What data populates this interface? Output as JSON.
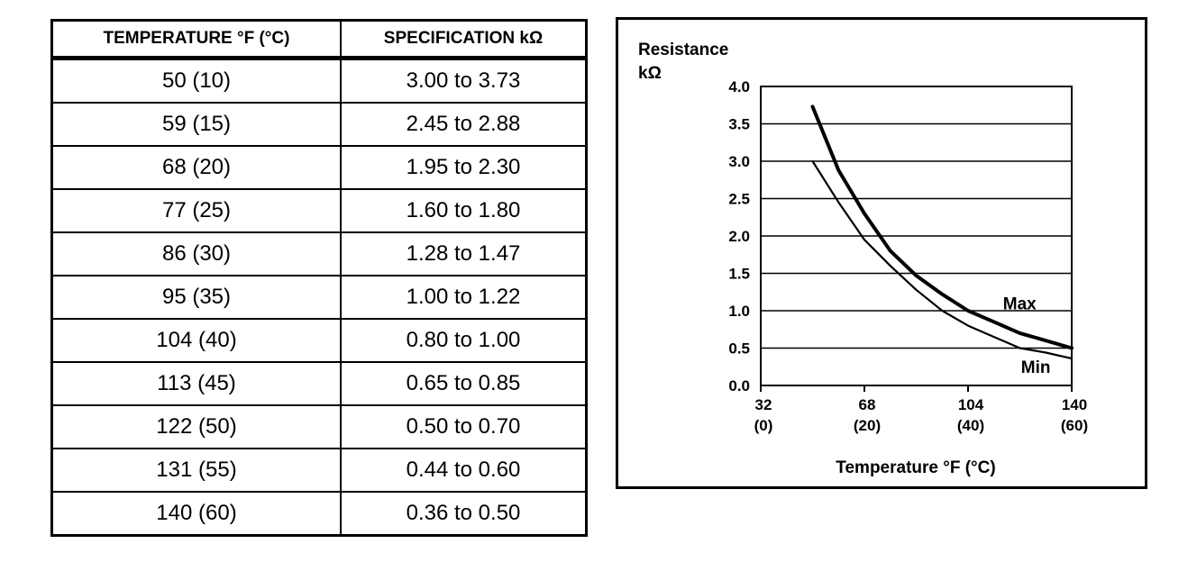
{
  "table": {
    "headers": [
      "TEMPERATURE °F (°C)",
      "SPECIFICATION kΩ"
    ],
    "rows": [
      [
        "50 (10)",
        "3.00 to 3.73"
      ],
      [
        "59 (15)",
        "2.45 to 2.88"
      ],
      [
        "68 (20)",
        "1.95 to 2.30"
      ],
      [
        "77 (25)",
        "1.60 to 1.80"
      ],
      [
        "86 (30)",
        "1.28 to 1.47"
      ],
      [
        "95 (35)",
        "1.00 to 1.22"
      ],
      [
        "104 (40)",
        "0.80 to 1.00"
      ],
      [
        "113 (45)",
        "0.65 to 0.85"
      ],
      [
        "122 (50)",
        "0.50 to 0.70"
      ],
      [
        "131 (55)",
        "0.44 to 0.60"
      ],
      [
        "140 (60)",
        "0.36 to 0.50"
      ]
    ]
  },
  "chart_data": {
    "type": "line",
    "ylabel_line1": "Resistance",
    "ylabel_line2": "kΩ",
    "xlabel": "Temperature °F (°C)",
    "xlim": [
      32,
      140
    ],
    "ylim": [
      0,
      4.0
    ],
    "grid": "horizontal",
    "y_ticks": [
      "0.0",
      "0.5",
      "1.0",
      "1.5",
      "2.0",
      "2.5",
      "3.0",
      "3.5",
      "4.0"
    ],
    "y_tick_values": [
      0,
      0.5,
      1.0,
      1.5,
      2.0,
      2.5,
      3.0,
      3.5,
      4.0
    ],
    "x_ticks": [
      {
        "value": 32,
        "label_f": "32",
        "label_c": "(0)"
      },
      {
        "value": 68,
        "label_f": "68",
        "label_c": "(20)"
      },
      {
        "value": 104,
        "label_f": "104",
        "label_c": "(40)"
      },
      {
        "value": 140,
        "label_f": "140",
        "label_c": "(60)"
      }
    ],
    "series": [
      {
        "name": "Max",
        "x": [
          50,
          59,
          68,
          77,
          86,
          95,
          104,
          113,
          122,
          131,
          140
        ],
        "values": [
          3.73,
          2.88,
          2.3,
          1.8,
          1.47,
          1.22,
          1.0,
          0.85,
          0.7,
          0.6,
          0.5
        ]
      },
      {
        "name": "Min",
        "x": [
          50,
          59,
          68,
          77,
          86,
          95,
          104,
          113,
          122,
          131,
          140
        ],
        "values": [
          3.0,
          2.45,
          1.95,
          1.6,
          1.28,
          1.0,
          0.8,
          0.65,
          0.5,
          0.44,
          0.36
        ]
      }
    ]
  }
}
